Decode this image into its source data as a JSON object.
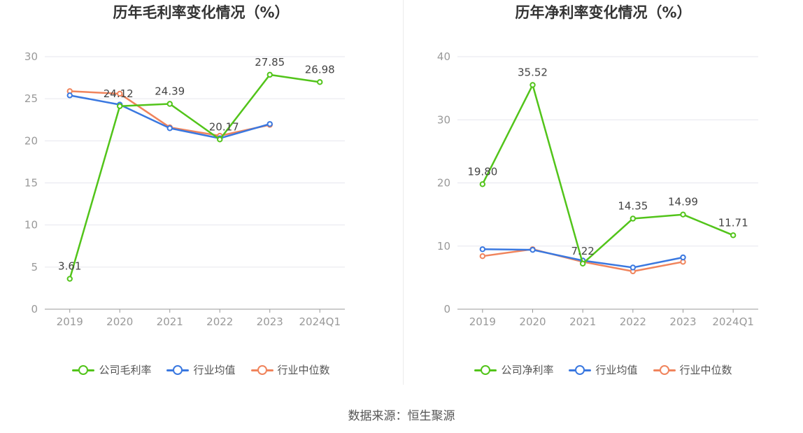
{
  "colors": {
    "company": "#52c41a",
    "avg": "#3a78e0",
    "median": "#f0845c",
    "grid": "#e6e6ee",
    "axis": "#999999"
  },
  "source": "数据来源：恒生聚源",
  "chart_data": [
    {
      "type": "line",
      "title": "历年毛利率变化情况（%）",
      "categories": [
        "2019",
        "2020",
        "2021",
        "2022",
        "2023",
        "2024Q1"
      ],
      "ylim": [
        0,
        30
      ],
      "yticks": [
        0,
        5,
        10,
        15,
        20,
        25,
        30
      ],
      "grid": true,
      "legend_position": "bottom",
      "series": [
        {
          "name": "公司毛利率",
          "key": "company",
          "values": [
            3.61,
            24.12,
            24.39,
            20.17,
            27.85,
            26.98
          ],
          "labels": [
            "3.61",
            "24.12",
            "24.39",
            "20.17",
            "27.85",
            "26.98"
          ]
        },
        {
          "name": "行业均值",
          "key": "avg",
          "values": [
            25.4,
            24.3,
            21.5,
            20.3,
            22.0,
            null
          ]
        },
        {
          "name": "行业中位数",
          "key": "median",
          "values": [
            25.9,
            25.6,
            21.6,
            20.6,
            21.9,
            null
          ]
        }
      ]
    },
    {
      "type": "line",
      "title": "历年净利率变化情况（%）",
      "categories": [
        "2019",
        "2020",
        "2021",
        "2022",
        "2023",
        "2024Q1"
      ],
      "ylim": [
        0,
        40
      ],
      "yticks": [
        0,
        10,
        20,
        30,
        40
      ],
      "grid": true,
      "legend_position": "bottom",
      "series": [
        {
          "name": "公司净利率",
          "key": "company",
          "values": [
            19.8,
            35.52,
            7.22,
            14.35,
            14.99,
            11.71
          ],
          "labels": [
            "19.80",
            "35.52",
            "7.22",
            "14.35",
            "14.99",
            "11.71"
          ]
        },
        {
          "name": "行业均值",
          "key": "avg",
          "values": [
            9.5,
            9.4,
            7.7,
            6.6,
            8.2,
            null
          ]
        },
        {
          "name": "行业中位数",
          "key": "median",
          "values": [
            8.4,
            9.5,
            7.5,
            6.0,
            7.5,
            null
          ]
        }
      ]
    }
  ]
}
